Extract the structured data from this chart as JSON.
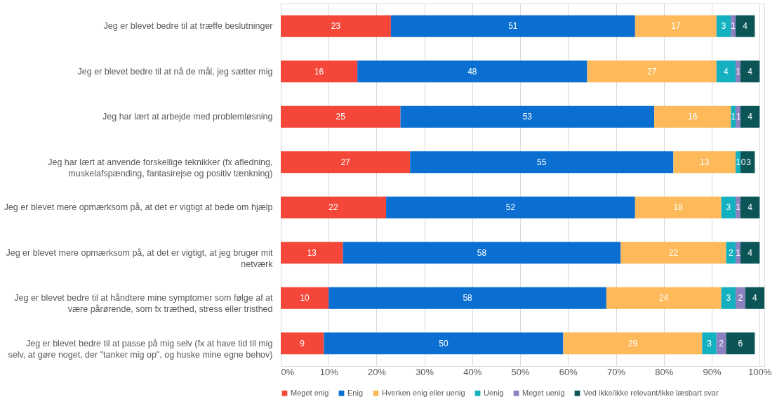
{
  "chart_data": {
    "type": "bar",
    "orientation": "horizontal",
    "stacked": true,
    "data_labels": true,
    "grid": "x",
    "legend": "bottom",
    "categories": [
      "Jeg er blevet bedre til at træffe beslutninger",
      "Jeg er blevet bedre til at nå de mål, jeg sætter mig",
      "Jeg har lært at arbejde med problemløsning",
      "Jeg har lært at anvende forskellige teknikker (fx afledning, muskelafspænding, fantasirejse og positiv tænkning)",
      "Jeg er blevet mere opmærksom på, at det er vigtigt at bede om hjælp",
      "Jeg er blevet mere opmærksom på, at det er vigtigt, at jeg bruger mit netværk",
      "Jeg er blevet bedre til at håndtere mine symptomer som følge af at være pårørende, som fx træthed, stress eller tristhed",
      "Jeg er blevet bedre til at passe på mig selv (fx at have tid til mig selv, at gøre noget, der \"tanker mig op\", og huske mine egne behov)"
    ],
    "series": [
      {
        "name": "Meget enig",
        "color": "#f4473a",
        "values": [
          23,
          16,
          25,
          27,
          22,
          13,
          10,
          9
        ]
      },
      {
        "name": "Enig",
        "color": "#0a6fd0",
        "values": [
          51,
          48,
          53,
          55,
          52,
          58,
          58,
          50
        ]
      },
      {
        "name": "Hverken enig eller uenig",
        "color": "#fdb95a",
        "values": [
          17,
          27,
          16,
          13,
          18,
          22,
          24,
          29
        ]
      },
      {
        "name": "Uenig",
        "color": "#13b1c0",
        "values": [
          3,
          4,
          1,
          1,
          3,
          2,
          3,
          3
        ]
      },
      {
        "name": "Meget uenig",
        "color": "#8c81bf",
        "values": [
          1,
          1,
          1,
          0,
          1,
          1,
          2,
          2
        ]
      },
      {
        "name": "Ved ikke/ikke relevant/ikke læsbart svar",
        "color": "#0b5557",
        "values": [
          4,
          4,
          4,
          3,
          4,
          4,
          4,
          6
        ]
      }
    ],
    "xlim": [
      0,
      101
    ],
    "xticks": [
      {
        "value": 0,
        "label": "0%"
      },
      {
        "value": 10,
        "label": "10%"
      },
      {
        "value": 20,
        "label": "20%"
      },
      {
        "value": 30,
        "label": "30%"
      },
      {
        "value": 40,
        "label": "40%"
      },
      {
        "value": 50,
        "label": "50%"
      },
      {
        "value": 60,
        "label": "60%"
      },
      {
        "value": 70,
        "label": "70%"
      },
      {
        "value": 80,
        "label": "80%"
      },
      {
        "value": 90,
        "label": "90%"
      },
      {
        "value": 100,
        "label": "100%"
      }
    ]
  }
}
